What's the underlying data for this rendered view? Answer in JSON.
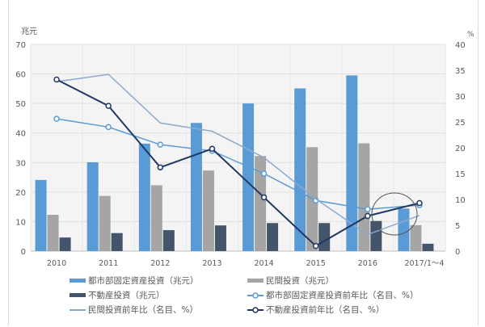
{
  "chart_data": {
    "type": "bar",
    "categories": [
      "2010",
      "2011",
      "2012",
      "2013",
      "2014",
      "2015",
      "2016",
      "2017/1～4"
    ],
    "y_left": {
      "label": "兆元",
      "ylim": [
        0,
        70
      ],
      "ticks": [
        0,
        10,
        20,
        30,
        40,
        50,
        60,
        70
      ]
    },
    "y_right": {
      "label": "%",
      "ylim": [
        0,
        40
      ],
      "ticks": [
        0,
        5,
        10,
        15,
        20,
        25,
        30,
        35,
        40
      ]
    },
    "grid": true,
    "legend_placement": "bottom",
    "bar_series": [
      {
        "name": "都市部固定資産投資（兆元）",
        "color": "#5b9bd5",
        "values": [
          24.1,
          30.1,
          36.4,
          43.4,
          50.0,
          55.1,
          59.5,
          14.4
        ]
      },
      {
        "name": "民間投資（兆元）",
        "color": "#a5a5a5",
        "values": [
          12.3,
          18.7,
          22.3,
          27.3,
          32.2,
          35.2,
          36.5,
          8.8
        ]
      },
      {
        "name": "不動産投資（兆元）",
        "color": "#44546a",
        "values": [
          4.6,
          6.1,
          7.1,
          8.7,
          9.5,
          9.5,
          10.2,
          2.5
        ]
      }
    ],
    "line_series": [
      {
        "name": "都市部固定資産投資前年比（名目、%）",
        "color": "#5b9bd5",
        "marker": true,
        "values": [
          25.6,
          24.0,
          20.6,
          19.4,
          15.0,
          9.8,
          8.1,
          8.9
        ]
      },
      {
        "name": "民間投資前年比（名目、%）",
        "color": "#8ea9cc",
        "marker": false,
        "values": [
          32.8,
          34.2,
          24.8,
          23.2,
          18.1,
          10.1,
          3.2,
          6.9
        ]
      },
      {
        "name": "不動産投資前年比（名目、%）",
        "color": "#1f3864",
        "marker": true,
        "values": [
          33.2,
          28.1,
          16.2,
          19.8,
          10.4,
          1.0,
          6.8,
          9.3
        ]
      }
    ]
  }
}
